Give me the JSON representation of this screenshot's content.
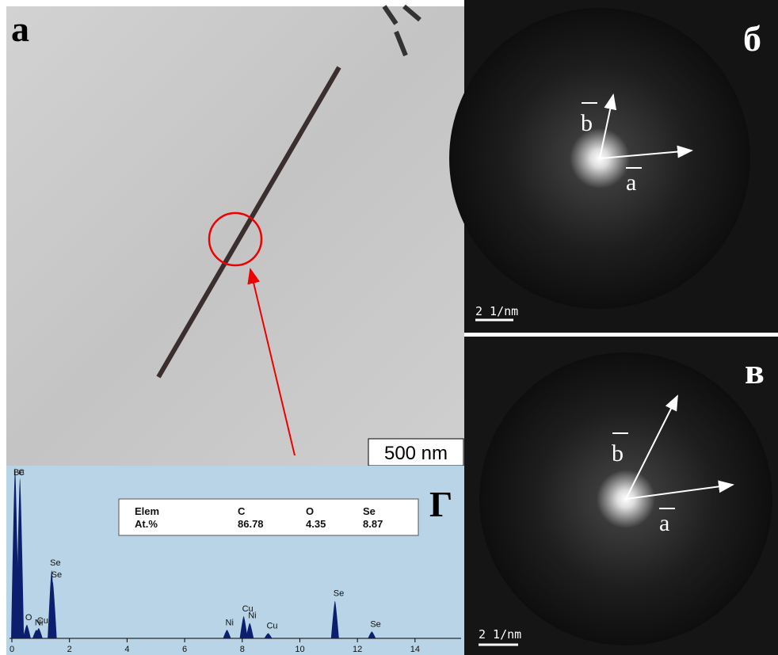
{
  "panels": {
    "a": {
      "label": "а",
      "scale_bar": "500 nm"
    },
    "b": {
      "label": "б",
      "scale_bar": "2 1/nm",
      "vector_a": "a",
      "vector_b": "b"
    },
    "c": {
      "label": "в",
      "scale_bar": "2 1/nm",
      "vector_a": "a",
      "vector_b": "b"
    },
    "d": {
      "label": "Г",
      "xlim": [
        0,
        15.6
      ],
      "xticks": [
        0,
        2,
        4,
        6,
        8,
        10,
        12,
        14
      ],
      "table": {
        "header": [
          "Elem",
          "C",
          "O",
          "Se"
        ],
        "rows": [
          [
            "At.%",
            "86.78",
            "4.35",
            "8.87"
          ]
        ]
      },
      "peaks": [
        {
          "label": "Be",
          "energy": 0.11,
          "intensity": 100
        },
        {
          "label": "C",
          "energy": 0.28,
          "intensity": 94
        },
        {
          "label": "O",
          "energy": 0.52,
          "intensity": 8
        },
        {
          "label": "Ni",
          "energy": 0.85,
          "intensity": 5
        },
        {
          "label": "Cu",
          "energy": 0.93,
          "intensity": 6
        },
        {
          "label": "Se",
          "energy": 1.38,
          "intensity": 40
        },
        {
          "label": "Se",
          "energy": 1.42,
          "intensity": 33
        },
        {
          "label": "Ni",
          "energy": 7.47,
          "intensity": 5
        },
        {
          "label": "Cu",
          "energy": 8.05,
          "intensity": 13
        },
        {
          "label": "Ni",
          "energy": 8.26,
          "intensity": 9
        },
        {
          "label": "Cu",
          "energy": 8.9,
          "intensity": 3
        },
        {
          "label": "Se",
          "energy": 11.22,
          "intensity": 22
        },
        {
          "label": "Se",
          "energy": 12.5,
          "intensity": 4
        }
      ]
    }
  }
}
